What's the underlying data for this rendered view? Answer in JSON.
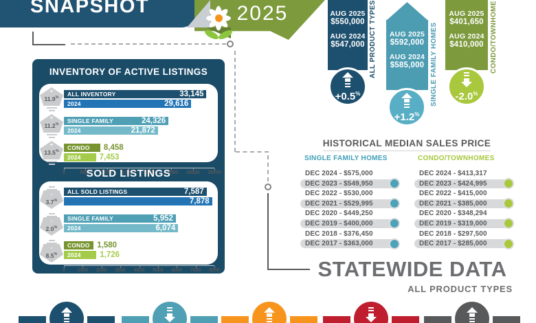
{
  "header": {
    "title": "SNAPSHOT",
    "year": "2025"
  },
  "colors": {
    "navy": "#1d4f6e",
    "blue": "#2274b5",
    "teal": "#4f9fb5",
    "teal_light": "#74b9c9",
    "olive": "#77942f",
    "green_light": "#a5cb4b",
    "gray_badge": "#c9cbcd",
    "orange": "#f7941e",
    "red": "#be1e2d",
    "dark_gray": "#58595b",
    "banner_green": "#7d9a3d"
  },
  "price_columns": [
    {
      "label": "ALL PRODUCT TYPES",
      "column_color": "#1d4f6e",
      "circle_color": "#1d4f6e",
      "rows": [
        {
          "period": "AUG 2025",
          "value": "$550,000"
        },
        {
          "period": "AUG 2024",
          "value": "$547,000"
        }
      ],
      "change": "+0.5",
      "change_unit": "%",
      "direction": "up"
    },
    {
      "label": "SINGLE FAMILY HOMES",
      "column_color": "#4c9cb2",
      "circle_color": "#58aec4",
      "rows": [
        {
          "period": "AUG 2025",
          "value": "$592,000"
        },
        {
          "period": "AUG 2024",
          "value": "$585,000"
        }
      ],
      "change": "+1.2",
      "change_unit": "%",
      "direction": "up"
    },
    {
      "label": "CONDO/TOWNHOME",
      "column_color": "#7d9a3d",
      "circle_color": "#a9c83d",
      "rows": [
        {
          "period": "AUG 2025",
          "value": "$401,650"
        },
        {
          "period": "AUG 2024",
          "value": "$410,000"
        }
      ],
      "change": "-2.0",
      "change_unit": "%",
      "direction": "down"
    }
  ],
  "chart_data": [
    {
      "id": "inventory",
      "type": "bar",
      "orientation": "horizontal",
      "title": "INVENTORY OF ACTIVE LISTINGS",
      "xlim": [
        0,
        35000
      ],
      "x_ticks": [
        0,
        5000,
        10000,
        15000,
        20000,
        25000,
        30000,
        35000
      ],
      "groups": [
        {
          "change": "+11.9%",
          "direction": "up",
          "bars": [
            {
              "label": "ALL INVENTORY",
              "value": 33145,
              "color": "#1d4f6e",
              "value_inside": true
            },
            {
              "label": "2024",
              "value": 29616,
              "color": "#2274b5",
              "value_inside": true
            }
          ]
        },
        {
          "change": "+11.2%",
          "direction": "up",
          "bars": [
            {
              "label": "SINGLE FAMILY",
              "value": 24326,
              "color": "#4f9fb5",
              "value_inside": true
            },
            {
              "label": "2024",
              "value": 21872,
              "color": "#74b9c9",
              "value_inside": true
            }
          ]
        },
        {
          "change": "+13.5%",
          "direction": "up",
          "bars": [
            {
              "label": "CONDO",
              "value": 8458,
              "color": "#77942f",
              "value_inside": false
            },
            {
              "label": "2024",
              "value": 7453,
              "color": "#a5cb4b",
              "value_inside": false
            }
          ]
        }
      ]
    },
    {
      "id": "sold",
      "type": "bar",
      "orientation": "horizontal",
      "title": "SOLD LISTINGS",
      "xlim": [
        0,
        8000
      ],
      "x_ticks": [
        0,
        1000,
        2000,
        3000,
        4000,
        5000,
        6000,
        7000,
        8000
      ],
      "groups": [
        {
          "change": "-3.7%",
          "direction": "down",
          "bars": [
            {
              "label": "ALL SOLD LISTINGS",
              "value": 7587,
              "color": "#1d4f6e",
              "value_inside": true
            },
            {
              "label": "",
              "value": 7878,
              "color": "#2274b5",
              "value_inside": true
            }
          ]
        },
        {
          "change": "-2.0%",
          "direction": "down",
          "bars": [
            {
              "label": "SINGLE FAMILY",
              "value": 5952,
              "color": "#4f9fb5",
              "value_inside": true
            },
            {
              "label": "2024",
              "value": 6074,
              "color": "#74b9c9",
              "value_inside": true
            }
          ]
        },
        {
          "change": "-8.5%",
          "direction": "down",
          "bars": [
            {
              "label": "CONDO",
              "value": 1580,
              "color": "#77942f",
              "value_inside": false
            },
            {
              "label": "2024",
              "value": 1726,
              "color": "#a5cb4b",
              "value_inside": false
            }
          ]
        }
      ]
    },
    {
      "id": "historical",
      "type": "table",
      "title": "HISTORICAL MEDIAN SALES PRICE",
      "columns": [
        {
          "header": "SINGLE FAMILY HOMES",
          "color": "#3e9fb8",
          "dot_color": "#4ca2b8",
          "rows": [
            {
              "label": "DEC 2024 - $575,000",
              "highlight": false
            },
            {
              "label": "DEC 2023 - $549,950",
              "highlight": true
            },
            {
              "label": "DEC 2022 - $530,000",
              "highlight": false
            },
            {
              "label": "DEC 2021 - $529,995",
              "highlight": true
            },
            {
              "label": "DEC 2020 - $449,250",
              "highlight": false
            },
            {
              "label": "DEC 2019 - $400,000",
              "highlight": true
            },
            {
              "label": "DEC 2018 - $376,450",
              "highlight": false
            },
            {
              "label": "DEC 2017 - $363,000",
              "highlight": true
            }
          ]
        },
        {
          "header": "CONDO/TOWNHOMES",
          "color": "#a6c83d",
          "dot_color": "#a9c83d",
          "rows": [
            {
              "label": "DEC 2024 - $413,317",
              "highlight": false
            },
            {
              "label": "DEC 2023 - $424,995",
              "highlight": true
            },
            {
              "label": "DEC 2022 - $415,000",
              "highlight": false
            },
            {
              "label": "DEC 2021 - $385,000",
              "highlight": true
            },
            {
              "label": "DEC 2020 - $348,294",
              "highlight": false
            },
            {
              "label": "DEC 2019 - $319,000",
              "highlight": true
            },
            {
              "label": "DEC 2018 - $297,500",
              "highlight": false
            },
            {
              "label": "DEC 2017 - $285,000",
              "highlight": true
            }
          ]
        }
      ]
    }
  ],
  "statewide": {
    "title": "STATEWIDE DATA",
    "subtitle": "ALL PRODUCT TYPES"
  },
  "bottom_ribbons": [
    {
      "color": "#1d4f6e",
      "direction": "up"
    },
    {
      "color": "#4f9fb5",
      "direction": "down"
    },
    {
      "color": "#f7941e",
      "direction": "up"
    },
    {
      "color": "#be1e2d",
      "direction": "down"
    },
    {
      "color": "#58595b",
      "direction": "up"
    }
  ]
}
